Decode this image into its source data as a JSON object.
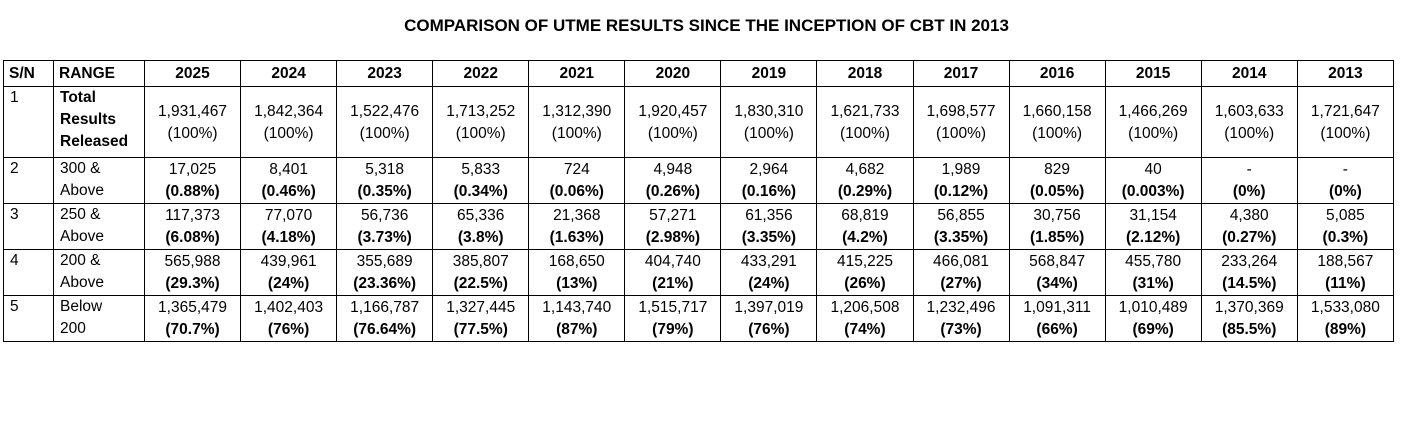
{
  "title": "COMPARISON OF UTME RESULTS SINCE THE INCEPTION OF CBT IN 2013",
  "headers": {
    "sn": "S/N",
    "range": "RANGE",
    "years": [
      "2025",
      "2024",
      "2023",
      "2022",
      "2021",
      "2020",
      "2019",
      "2018",
      "2017",
      "2016",
      "2015",
      "2014",
      "2013"
    ]
  },
  "rows": [
    {
      "sn": "1",
      "range_lines": [
        "Total",
        "Results",
        "Released"
      ],
      "counts": [
        "1,931,467",
        "1,842,364",
        "1,522,476",
        "1,713,252",
        "1,312,390",
        "1,920,457",
        "1,830,310",
        "1,621,733",
        "1,698,577",
        "1,660,158",
        "1,466,269",
        "1,603,633",
        "1,721,647"
      ],
      "percents": [
        "(100%)",
        "(100%)",
        "(100%)",
        "(100%)",
        "(100%)",
        "(100%)",
        "(100%)",
        "(100%)",
        "(100%)",
        "(100%)",
        "(100%)",
        "(100%)",
        "(100%)"
      ]
    },
    {
      "sn": "2",
      "range_lines": [
        "300 &",
        "Above"
      ],
      "counts": [
        "17,025",
        "8,401",
        "5,318",
        "5,833",
        "724",
        "4,948",
        "2,964",
        "4,682",
        "1,989",
        "829",
        "40",
        "-",
        "-"
      ],
      "percents": [
        "(0.88%)",
        "(0.46%)",
        "(0.35%)",
        "(0.34%)",
        "(0.06%)",
        "(0.26%)",
        "(0.16%)",
        "(0.29%)",
        "(0.12%)",
        "(0.05%)",
        "(0.003%)",
        "(0%)",
        "(0%)"
      ]
    },
    {
      "sn": "3",
      "range_lines": [
        "250 &",
        "Above"
      ],
      "counts": [
        "117,373",
        "77,070",
        "56,736",
        "65,336",
        "21,368",
        "57,271",
        "61,356",
        "68,819",
        "56,855",
        "30,756",
        "31,154",
        "4,380",
        "5,085"
      ],
      "percents": [
        "(6.08%)",
        "(4.18%)",
        "(3.73%)",
        "(3.8%)",
        "(1.63%)",
        "(2.98%)",
        "(3.35%)",
        "(4.2%)",
        "(3.35%)",
        "(1.85%)",
        "(2.12%)",
        "(0.27%)",
        "(0.3%)"
      ]
    },
    {
      "sn": "4",
      "range_lines": [
        "200 &",
        "Above"
      ],
      "counts": [
        "565,988",
        "439,961",
        "355,689",
        "385,807",
        "168,650",
        "404,740",
        "433,291",
        "415,225",
        "466,081",
        "568,847",
        "455,780",
        "233,264",
        "188,567"
      ],
      "percents": [
        "(29.3%)",
        "(24%)",
        "(23.36%)",
        "(22.5%)",
        "(13%)",
        "(21%)",
        "(24%)",
        "(26%)",
        "(27%)",
        "(34%)",
        "(31%)",
        "(14.5%)",
        "(11%)"
      ]
    },
    {
      "sn": "5",
      "range_lines": [
        "Below",
        "200"
      ],
      "counts": [
        "1,365,479",
        "1,402,403",
        "1,166,787",
        "1,327,445",
        "1,143,740",
        "1,515,717",
        "1,397,019",
        "1,206,508",
        "1,232,496",
        "1,091,311",
        "1,010,489",
        "1,370,369",
        "1,533,080"
      ],
      "percents": [
        "(70.7%)",
        "(76%)",
        "(76.64%)",
        "(77.5%)",
        "(87%)",
        "(79%)",
        "(76%)",
        "(74%)",
        "(73%)",
        "(66%)",
        "(69%)",
        "(85.5%)",
        "(89%)"
      ]
    }
  ]
}
